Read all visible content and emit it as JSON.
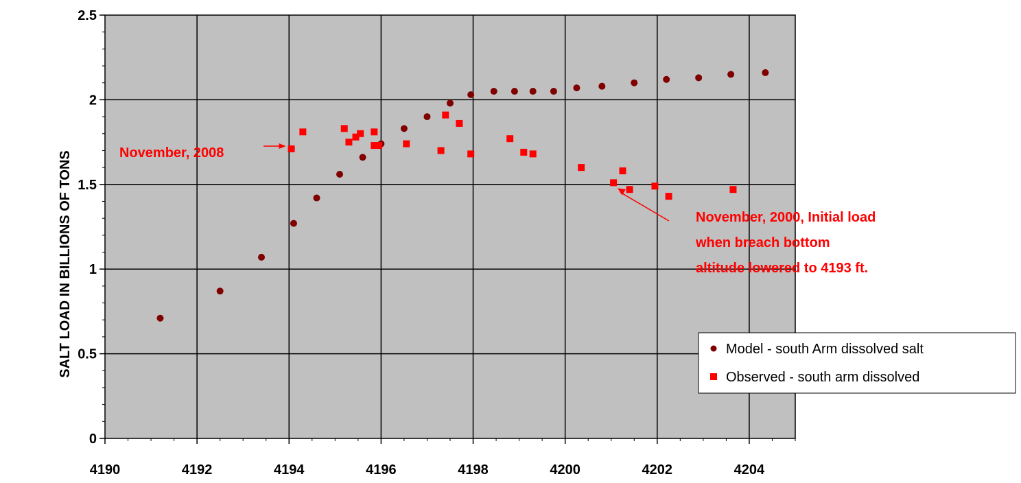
{
  "chart_data": {
    "type": "scatter",
    "title": "",
    "xlabel": "",
    "ylabel": "SALT LOAD IN BILLIONS OF TONS",
    "xlim": [
      4190,
      4205
    ],
    "ylim": [
      0,
      2.5
    ],
    "x_ticks": [
      4190,
      4192,
      4194,
      4196,
      4198,
      4200,
      4202,
      4204
    ],
    "y_ticks": [
      0,
      0.5,
      1,
      1.5,
      2,
      2.5
    ],
    "x_tick_labels": [
      "4190",
      "4192",
      "4194",
      "4196",
      "4198",
      "4200",
      "4202",
      "4204"
    ],
    "y_tick_labels": [
      "0",
      "0.5",
      "1",
      "1.5",
      "2",
      "2.5"
    ],
    "grid": true,
    "plot_background": "#c0c0c0",
    "legend_position": "bottom-right",
    "series": [
      {
        "name": "Model - south Arm dissolved salt",
        "marker": "circle",
        "color": "#800000",
        "points": [
          [
            4191.2,
            0.71
          ],
          [
            4192.5,
            0.87
          ],
          [
            4193.4,
            1.07
          ],
          [
            4194.1,
            1.27
          ],
          [
            4194.6,
            1.42
          ],
          [
            4195.1,
            1.56
          ],
          [
            4195.6,
            1.66
          ],
          [
            4196.0,
            1.74
          ],
          [
            4196.5,
            1.83
          ],
          [
            4197.0,
            1.9
          ],
          [
            4197.5,
            1.98
          ],
          [
            4197.95,
            2.03
          ],
          [
            4198.45,
            2.05
          ],
          [
            4198.9,
            2.05
          ],
          [
            4199.3,
            2.05
          ],
          [
            4199.75,
            2.05
          ],
          [
            4200.25,
            2.07
          ],
          [
            4200.8,
            2.08
          ],
          [
            4201.5,
            2.1
          ],
          [
            4202.2,
            2.12
          ],
          [
            4202.9,
            2.13
          ],
          [
            4203.6,
            2.15
          ],
          [
            4204.35,
            2.16
          ]
        ]
      },
      {
        "name": "Observed - south arm dissolved",
        "marker": "square",
        "color": "#ff0000",
        "points": [
          [
            4194.05,
            1.71
          ],
          [
            4194.3,
            1.81
          ],
          [
            4195.2,
            1.83
          ],
          [
            4195.3,
            1.75
          ],
          [
            4195.45,
            1.78
          ],
          [
            4195.55,
            1.8
          ],
          [
            4195.85,
            1.81
          ],
          [
            4195.85,
            1.73
          ],
          [
            4195.95,
            1.73
          ],
          [
            4196.55,
            1.74
          ],
          [
            4197.3,
            1.7
          ],
          [
            4197.4,
            1.91
          ],
          [
            4197.7,
            1.86
          ],
          [
            4197.95,
            1.68
          ],
          [
            4198.8,
            1.77
          ],
          [
            4199.1,
            1.69
          ],
          [
            4199.3,
            1.68
          ],
          [
            4200.35,
            1.6
          ],
          [
            4201.05,
            1.51
          ],
          [
            4201.25,
            1.58
          ],
          [
            4201.4,
            1.47
          ],
          [
            4201.95,
            1.49
          ],
          [
            4202.25,
            1.43
          ],
          [
            4203.65,
            1.47
          ]
        ]
      }
    ],
    "annotations": [
      {
        "text_lines": [
          "November, 2008"
        ],
        "target": [
          4194.05,
          1.71
        ]
      },
      {
        "text_lines": [
          "November, 2000, Initial load",
          "when breach bottom",
          "altitude lowered to 4193 ft."
        ],
        "target": [
          4201.05,
          1.51
        ]
      }
    ]
  }
}
